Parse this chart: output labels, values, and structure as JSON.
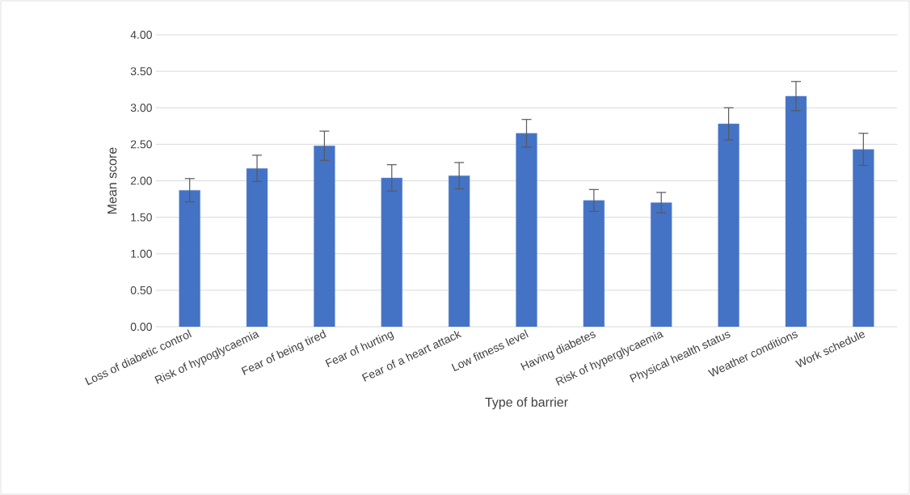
{
  "chart_data": {
    "type": "bar",
    "xlabel": "Type of barrier",
    "ylabel": "Mean score",
    "categories": [
      "Loss of diabetic control",
      "Risk of hypoglycaemia",
      "Fear of being tired",
      "Fear of hurting",
      "Fear of a heart attack",
      "Low fitness level",
      "Having diabetes",
      "Risk of hyperglycaemia",
      "Physical health status",
      "Weather conditions",
      "Work schedule"
    ],
    "values": [
      1.87,
      2.17,
      2.48,
      2.04,
      2.07,
      2.65,
      1.73,
      1.7,
      2.78,
      3.16,
      2.43
    ],
    "errors": [
      0.16,
      0.18,
      0.2,
      0.18,
      0.18,
      0.19,
      0.15,
      0.14,
      0.22,
      0.2,
      0.22
    ],
    "color": "#4472c4",
    "ylim": [
      0,
      4
    ],
    "yticks": [
      {
        "value": 0,
        "label": "0.00"
      },
      {
        "value": 0.5,
        "label": "0.50"
      },
      {
        "value": 1,
        "label": "1.00"
      },
      {
        "value": 1.5,
        "label": "1.50"
      },
      {
        "value": 2,
        "label": "2.00"
      },
      {
        "value": 2.5,
        "label": "2.50"
      },
      {
        "value": 3,
        "label": "3.00"
      },
      {
        "value": 3.5,
        "label": "3.50"
      },
      {
        "value": 4,
        "label": "4.00"
      }
    ],
    "grid": "y"
  }
}
